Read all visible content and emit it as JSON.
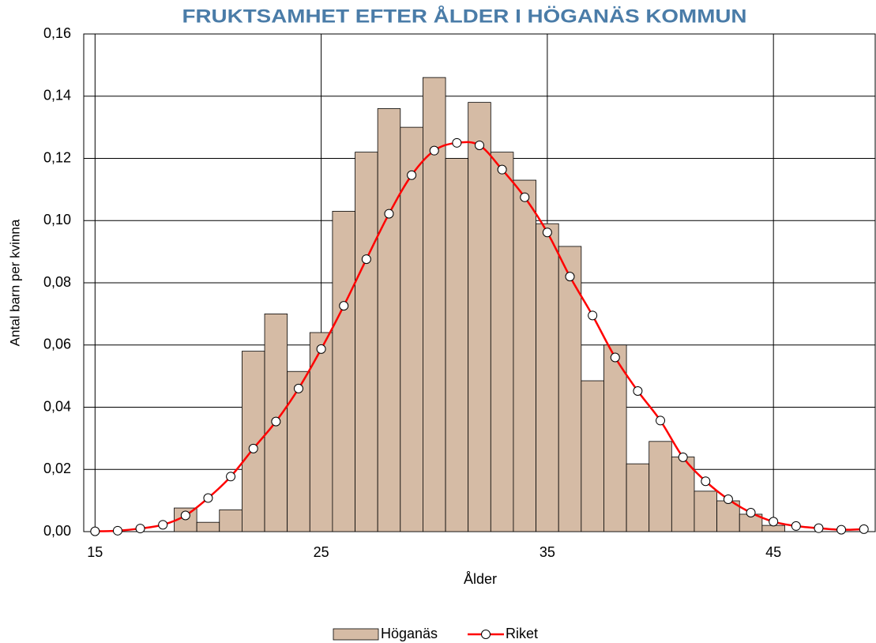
{
  "chart_data": {
    "type": "combo",
    "title": "FRUKTSAMHET EFTER ÅLDER I HÖGANÄS KOMMUN",
    "x_label": "Ålder",
    "y_label": "Antal barn per kvinna",
    "x": [
      15,
      16,
      17,
      18,
      19,
      20,
      21,
      22,
      23,
      24,
      25,
      26,
      27,
      28,
      29,
      30,
      31,
      32,
      33,
      34,
      35,
      36,
      37,
      38,
      39,
      40,
      41,
      42,
      43,
      44,
      45,
      46,
      47,
      48,
      49
    ],
    "series": [
      {
        "name": "Höganäs",
        "type": "bar",
        "color": "#d5bba5",
        "values": [
          0,
          0,
          0,
          0,
          0.0076,
          0.003,
          0.007,
          0.058,
          0.07,
          0.0515,
          0.064,
          0.103,
          0.122,
          0.136,
          0.13,
          0.146,
          0.12,
          0.138,
          0.122,
          0.113,
          0.099,
          0.0917,
          0.0485,
          0.06,
          0.0218,
          0.029,
          0.024,
          0.013,
          0.0099,
          0.0056,
          0.002,
          0,
          0,
          0,
          0
        ]
      },
      {
        "name": "Riket",
        "type": "line",
        "color": "#ff0000",
        "values": [
          0.0001,
          0.0003,
          0.001,
          0.0022,
          0.0052,
          0.0108,
          0.0177,
          0.0267,
          0.0354,
          0.046,
          0.0587,
          0.0726,
          0.0876,
          0.1022,
          0.1146,
          0.1225,
          0.125,
          0.1242,
          0.1164,
          0.1075,
          0.0962,
          0.082,
          0.0695,
          0.056,
          0.0452,
          0.0357,
          0.0239,
          0.0162,
          0.0104,
          0.0061,
          0.0032,
          0.0018,
          0.0011,
          0.0006,
          0.0008
        ]
      }
    ],
    "xlim": [
      14.5,
      49.5
    ],
    "xticks": [
      15,
      25,
      35,
      45
    ],
    "ylim": [
      0,
      0.16
    ],
    "yticks": [
      {
        "value": 0,
        "label": "0,00"
      },
      {
        "value": 0.02,
        "label": "0,02"
      },
      {
        "value": 0.04,
        "label": "0,04"
      },
      {
        "value": 0.06,
        "label": "0,06"
      },
      {
        "value": 0.08,
        "label": "0,08"
      },
      {
        "value": 0.1,
        "label": "0,10"
      },
      {
        "value": 0.12,
        "label": "0,12"
      },
      {
        "value": 0.14,
        "label": "0,14"
      },
      {
        "value": 0.16,
        "label": "0,16"
      }
    ],
    "grid": true,
    "legend": "bottom"
  }
}
